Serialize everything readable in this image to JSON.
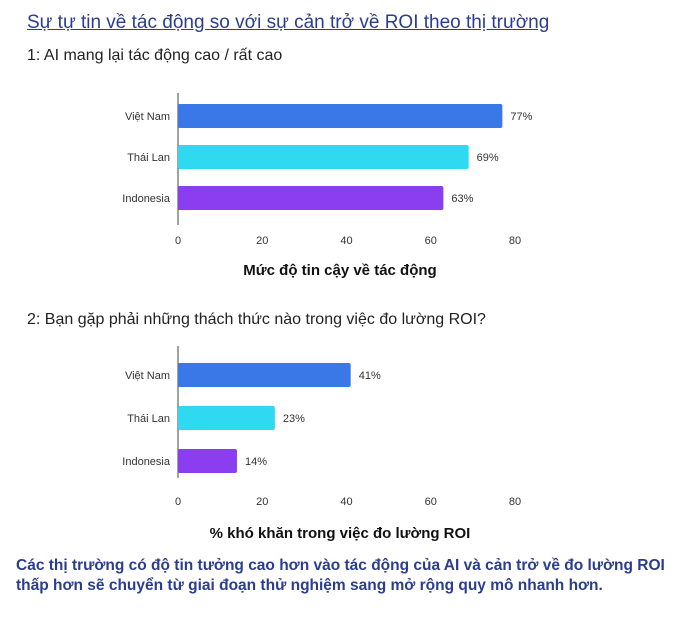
{
  "page": {
    "title": "Sự tự tin về tác động so với sự cản trở về ROI theo thị trường",
    "conclusion": "Các thị trường có độ tin tưởng cao hơn vào tác động của AI và cản trở về đo lường ROI thấp hơn sẽ chuyển từ giai đoạn thử nghiệm sang mở rộng quy mô nhanh hơn."
  },
  "chart_data": [
    {
      "type": "bar",
      "orientation": "horizontal",
      "title": "1: AI mang lại tác động cao / rất cao",
      "xlabel": "Mức độ tin cậy về tác động",
      "categories": [
        "Việt Nam",
        "Thái Lan",
        "Indonesia"
      ],
      "values": [
        77,
        69,
        63
      ],
      "value_labels": [
        "77%",
        "69%",
        "63%"
      ],
      "bar_colors": [
        "#3b78e7",
        "#2fd9f0",
        "#8a3ef0"
      ],
      "xlim": [
        0,
        80
      ],
      "xticks": [
        0,
        20,
        40,
        60,
        80
      ],
      "grid": false
    },
    {
      "type": "bar",
      "orientation": "horizontal",
      "title": "2: Bạn gặp phải những thách thức nào trong việc đo lường ROI?",
      "xlabel": "% khó khăn trong việc đo lường ROI",
      "categories": [
        "Việt Nam",
        "Thái Lan",
        "Indonesia"
      ],
      "values": [
        41,
        23,
        14
      ],
      "value_labels": [
        "41%",
        "23%",
        "14%"
      ],
      "bar_colors": [
        "#3b78e7",
        "#2fd9f0",
        "#8a3ef0"
      ],
      "xlim": [
        0,
        80
      ],
      "xticks": [
        0,
        20,
        40,
        60,
        80
      ],
      "grid": false
    }
  ]
}
